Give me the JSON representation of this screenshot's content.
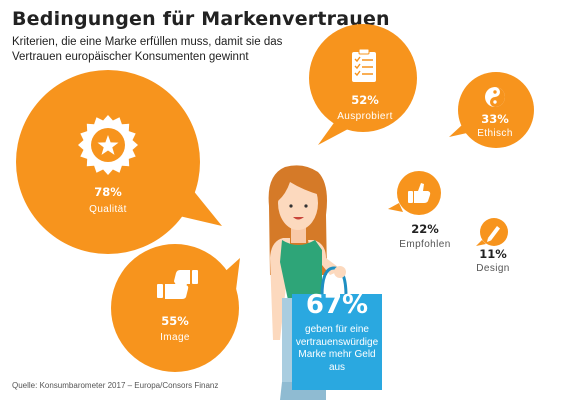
{
  "title": "Bedingungen für Markenvertrauen",
  "subtitle": "Kriterien, die eine Marke erfüllen muss, damit sie das Vertrauen europäischer Konsumenten gewinnt",
  "source": "Quelle: Konsumbarometer 2017 – Europa/Consors Finanz",
  "highlight": {
    "value_label": "67%",
    "text": "geben für eine vertrauenswürdige Marke mehr Geld aus"
  },
  "colors": {
    "orange": "#F7941D",
    "white": "#FFFFFF",
    "blue": "#2AA8E0",
    "dark_text": "#222222",
    "gray_text": "#555555"
  },
  "chart_data": {
    "type": "bubble",
    "items": [
      {
        "label": "Qualität",
        "value": 78,
        "value_label": "78%",
        "icon": "star-badge-icon"
      },
      {
        "label": "Image",
        "value": 55,
        "value_label": "55%",
        "icon": "thumbs-up-down-icon"
      },
      {
        "label": "Ausprobiert",
        "value": 52,
        "value_label": "52%",
        "icon": "checklist-icon"
      },
      {
        "label": "Ethisch",
        "value": 33,
        "value_label": "33%",
        "icon": "yin-yang-icon"
      },
      {
        "label": "Empfohlen",
        "value": 22,
        "value_label": "22%",
        "icon": "thumbs-up-icon"
      },
      {
        "label": "Design",
        "value": 11,
        "value_label": "11%",
        "icon": "pencil-icon"
      }
    ]
  }
}
